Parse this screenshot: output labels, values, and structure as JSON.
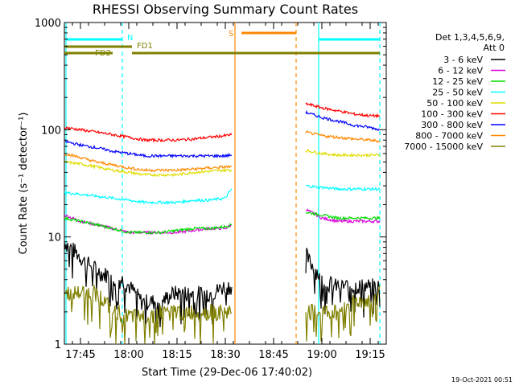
{
  "chart_data": {
    "type": "line",
    "title": "RHESSI Observing Summary Count Rates",
    "xlabel": "Start Time (29-Dec-06 17:40:02)",
    "ylabel": "Count Rate (s⁻¹ detector⁻¹)",
    "y_scale": "log",
    "ylim": [
      1,
      1000
    ],
    "xlim_min": [
      0,
      100
    ],
    "y_ticks": [
      {
        "value": 1,
        "label": "1"
      },
      {
        "value": 10,
        "label": "10"
      },
      {
        "value": 100,
        "label": "100"
      },
      {
        "value": 1000,
        "label": "1000"
      }
    ],
    "x_ticks": [
      {
        "value": 5,
        "label": "17:45"
      },
      {
        "value": 20,
        "label": "18:00"
      },
      {
        "value": 35,
        "label": "18:15"
      },
      {
        "value": 50,
        "label": "18:30"
      },
      {
        "value": 65,
        "label": "18:45"
      },
      {
        "value": 80,
        "label": "19:00"
      },
      {
        "value": 95,
        "label": "19:15"
      }
    ],
    "legend_header": [
      "Det 1,3,4,5,6,9,",
      "Att 0"
    ],
    "gap": [
      52,
      75
    ],
    "series": [
      {
        "name": "3 - 6 keV",
        "color": "#000000",
        "x": [
          0,
          2,
          4,
          6,
          8,
          10,
          12,
          14,
          16,
          18,
          20,
          22,
          24,
          26,
          30,
          34,
          38,
          42,
          46,
          50,
          52,
          75,
          76,
          78,
          80,
          84,
          88,
          92,
          96,
          98
        ],
        "y": [
          9,
          8,
          7,
          6,
          5.5,
          5,
          4.5,
          4.5,
          4,
          4,
          3.5,
          3,
          2.5,
          2.5,
          2.5,
          3,
          3,
          3,
          3,
          3.5,
          3.5,
          7,
          6,
          5,
          4,
          3.5,
          3.5,
          3.5,
          3.5,
          3.5
        ]
      },
      {
        "name": "6 - 12 keV",
        "color": "#dd00dd",
        "x": [
          0,
          5,
          10,
          15,
          20,
          25,
          30,
          35,
          40,
          45,
          50,
          52,
          75,
          80,
          85,
          90,
          95,
          98
        ],
        "y": [
          16,
          14,
          13,
          12,
          11,
          11,
          11,
          11,
          11.5,
          12,
          12,
          13,
          18,
          15,
          14,
          14,
          14,
          14
        ]
      },
      {
        "name": "12 - 25 keV",
        "color": "#00dd00",
        "x": [
          0,
          5,
          10,
          15,
          20,
          25,
          30,
          35,
          40,
          45,
          50,
          52,
          75,
          80,
          85,
          90,
          95,
          98
        ],
        "y": [
          15,
          14,
          13,
          12,
          11,
          11,
          11,
          11.5,
          12,
          12,
          12.5,
          13,
          17,
          16,
          15,
          15,
          15,
          15
        ]
      },
      {
        "name": "25 - 50 keV",
        "color": "#00ffff",
        "x": [
          0,
          5,
          10,
          15,
          20,
          25,
          30,
          35,
          40,
          45,
          50,
          52,
          75,
          80,
          85,
          90,
          95,
          98
        ],
        "y": [
          26,
          25,
          24,
          23,
          22,
          21,
          21,
          21,
          22,
          22,
          23,
          28,
          30,
          29,
          28,
          28,
          28,
          28
        ]
      },
      {
        "name": "50 - 100 keV",
        "color": "#dddd00",
        "x": [
          0,
          5,
          10,
          15,
          20,
          25,
          30,
          35,
          40,
          45,
          50,
          52,
          75,
          80,
          85,
          90,
          95,
          98
        ],
        "y": [
          50,
          48,
          45,
          42,
          40,
          38,
          38,
          38,
          40,
          41,
          42,
          42,
          64,
          60,
          58,
          58,
          58,
          58
        ]
      },
      {
        "name": "100 - 300 keV",
        "color": "#ff0000",
        "x": [
          0,
          5,
          10,
          15,
          20,
          25,
          30,
          35,
          40,
          45,
          50,
          52,
          75,
          80,
          85,
          90,
          95,
          98
        ],
        "y": [
          105,
          100,
          95,
          90,
          85,
          80,
          80,
          80,
          82,
          85,
          88,
          90,
          175,
          160,
          150,
          140,
          135,
          135
        ]
      },
      {
        "name": "300 - 800 keV",
        "color": "#0000ff",
        "x": [
          0,
          5,
          10,
          15,
          20,
          25,
          30,
          35,
          40,
          45,
          50,
          52,
          75,
          80,
          85,
          90,
          95,
          98
        ],
        "y": [
          78,
          72,
          68,
          63,
          60,
          57,
          57,
          57,
          57,
          57,
          57,
          58,
          145,
          130,
          120,
          110,
          105,
          100
        ]
      },
      {
        "name": "800 - 7000 keV",
        "color": "#ff8800",
        "x": [
          0,
          5,
          10,
          15,
          20,
          25,
          30,
          35,
          40,
          45,
          50,
          52,
          75,
          80,
          85,
          90,
          95,
          98
        ],
        "y": [
          60,
          55,
          50,
          47,
          44,
          42,
          42,
          42,
          43,
          44,
          45,
          45,
          95,
          88,
          85,
          82,
          80,
          78
        ]
      },
      {
        "name": "7000 - 15000 keV",
        "color": "#808000",
        "x": [
          0,
          5,
          10,
          15,
          20,
          25,
          30,
          35,
          40,
          45,
          50,
          52,
          75,
          80,
          85,
          90,
          95,
          98
        ],
        "y": [
          3,
          3,
          3,
          2,
          1.8,
          1.8,
          2,
          2,
          2,
          2,
          2,
          2,
          2,
          2,
          2,
          2.5,
          2.5,
          3
        ]
      }
    ],
    "annotations": [
      {
        "label": "N",
        "color": "#00ffff"
      },
      {
        "label": "S",
        "color": "#ff8800"
      },
      {
        "label": "FD1",
        "color": "#808000"
      },
      {
        "label": "FD2",
        "color": "#808000"
      }
    ],
    "timestamp": "19-Oct-2021 00:51"
  }
}
